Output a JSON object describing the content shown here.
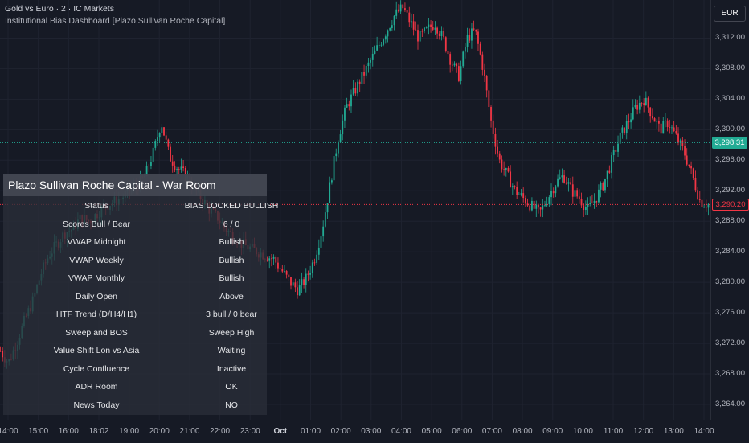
{
  "header": {
    "symbol": "Gold vs Euro · 2 · IC Markets",
    "indicator": "Institutional Bias Dashboard [Plazo Sullivan Roche Capital]"
  },
  "currency": "EUR",
  "price_axis": {
    "ticks": [
      "3,312.00",
      "3,308.00",
      "3,304.00",
      "3,300.00",
      "3,296.00",
      "3,292.00",
      "3,288.00",
      "3,284.00",
      "3,280.00",
      "3,276.00",
      "3,272.00",
      "3,268.00",
      "3,264.00"
    ],
    "current_price": "3,290.20",
    "reference_price": "3,298.31",
    "current_color": "#f23645",
    "reference_color": "#22ab94"
  },
  "time_axis": {
    "ticks": [
      "14:00",
      "15:00",
      "16:00",
      "18:02",
      "19:00",
      "20:00",
      "21:00",
      "22:00",
      "23:00",
      "Oct",
      "01:00",
      "02:00",
      "03:00",
      "04:00",
      "05:00",
      "06:00",
      "07:00",
      "08:00",
      "09:00",
      "10:00",
      "11:00",
      "12:00",
      "13:00",
      "14:00"
    ]
  },
  "dashboard": {
    "title": "Plazo Sullivan Roche Capital - War Room",
    "rows": [
      {
        "label": "Status",
        "value": "BIAS LOCKED BULLISH"
      },
      {
        "label": "Scores Bull / Bear",
        "value": "6 / 0"
      },
      {
        "label": "VWAP Midnight",
        "value": "Bullish"
      },
      {
        "label": "VWAP Weekly",
        "value": "Bullish"
      },
      {
        "label": "VWAP Monthly",
        "value": "Bullish"
      },
      {
        "label": "Daily Open",
        "value": "Above"
      },
      {
        "label": "HTF Trend (D/H4/H1)",
        "value": "3 bull / 0 bear"
      },
      {
        "label": "Sweep and BOS",
        "value": "Sweep High"
      },
      {
        "label": "Value Shift Lon vs Asia",
        "value": "Waiting"
      },
      {
        "label": "Cycle Confluence",
        "value": "Inactive"
      },
      {
        "label": "ADR Room",
        "value": "OK"
      },
      {
        "label": "News Today",
        "value": "NO"
      }
    ]
  },
  "chart_data": {
    "type": "candlestick",
    "title": "Gold vs Euro · 2 · IC Markets",
    "ylim": [
      3262,
      3317
    ],
    "up_color": "#22ab94",
    "down_color": "#f23645",
    "x": [
      "14:00",
      "15:00",
      "16:00",
      "18:02",
      "19:00",
      "20:00",
      "21:00",
      "22:00",
      "23:00",
      "Oct",
      "01:00",
      "02:00",
      "03:00",
      "04:00",
      "05:00",
      "06:00",
      "07:00",
      "08:00",
      "09:00",
      "10:00",
      "11:00",
      "12:00",
      "13:00",
      "14:00"
    ],
    "close_path": [
      3271,
      3269.5,
      3272,
      3275,
      3277.5,
      3281,
      3283.5,
      3285,
      3286.5,
      3287,
      3288.5,
      3288,
      3289,
      3290,
      3290.5,
      3291,
      3292,
      3292.5,
      3294,
      3297,
      3301,
      3296.5,
      3295,
      3294,
      3292.5,
      3291,
      3289.5,
      3288.5,
      3287,
      3286,
      3285,
      3284.5,
      3284,
      3283.5,
      3283,
      3281.5,
      3280,
      3279,
      3280.5,
      3283,
      3287,
      3293,
      3299,
      3303,
      3305,
      3307,
      3309,
      3311,
      3313,
      3315,
      3316,
      3314,
      3312,
      3313,
      3314,
      3312,
      3309,
      3307,
      3312,
      3313,
      3308,
      3301,
      3296,
      3294,
      3292,
      3291,
      3290,
      3289,
      3291,
      3293,
      3294,
      3292,
      3291,
      3289.5,
      3291,
      3293,
      3296,
      3299,
      3301,
      3303,
      3304,
      3302,
      3300,
      3301,
      3299,
      3297,
      3294,
      3290.5,
      3290.2
    ]
  }
}
